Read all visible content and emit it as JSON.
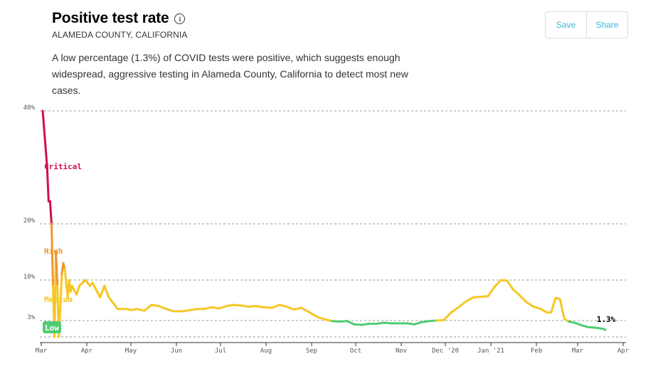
{
  "header": {
    "title": "Positive test rate",
    "info_icon": "info-icon",
    "subtitle": "ALAMEDA COUNTY, CALIFORNIA",
    "description": "A low percentage (1.3%) of COVID tests were positive, which suggests enough widespread, aggressive testing in Alameda County, California to detect most new cases."
  },
  "actions": {
    "save_label": "Save",
    "share_label": "Share"
  },
  "colors": {
    "critical": "#d0104a",
    "high": "#f0952f",
    "medium": "#f5c724",
    "low": "#4fcc74",
    "accent": "#3bb6d9"
  },
  "chart_data": {
    "type": "line",
    "title": "Positive test rate",
    "x_tick_labels": [
      "Mar",
      "Apr",
      "May",
      "Jun",
      "Jul",
      "Aug",
      "Sep",
      "Oct",
      "Nov",
      "Dec '20",
      "Jan '21",
      "Feb",
      "Mar",
      "Apr"
    ],
    "y_tick_labels": [
      "40%",
      "20%",
      "10%",
      "3%"
    ],
    "y_ticks": [
      40,
      20,
      10,
      3
    ],
    "xlim": [
      "2020-03-01",
      "2021-04-01"
    ],
    "grid": true,
    "zones": [
      {
        "name": "Critical",
        "from": 20,
        "to": 40
      },
      {
        "name": "High",
        "from": 10,
        "to": 20
      },
      {
        "name": "Medium",
        "from": 3,
        "to": 10
      },
      {
        "name": "Low",
        "from": 0,
        "to": 3
      }
    ],
    "last_value_label": "1.3%",
    "series": [
      {
        "x": [
          "2020-03-02",
          "2020-03-05",
          "2020-03-06",
          "2020-03-07",
          "2020-03-08",
          "2020-03-09",
          "2020-03-10",
          "2020-03-11",
          "2020-03-12",
          "2020-03-13",
          "2020-03-15",
          "2020-03-16",
          "2020-03-17",
          "2020-03-19",
          "2020-03-20",
          "2020-03-21",
          "2020-03-22",
          "2020-03-23",
          "2020-03-25",
          "2020-03-27",
          "2020-03-29",
          "2020-03-31",
          "2020-04-03",
          "2020-04-05",
          "2020-04-08",
          "2020-04-10",
          "2020-04-13",
          "2020-04-16",
          "2020-04-19",
          "2020-04-22",
          "2020-04-25",
          "2020-04-28",
          "2020-05-01",
          "2020-05-05",
          "2020-05-10",
          "2020-05-15",
          "2020-05-20",
          "2020-05-25",
          "2020-05-30",
          "2020-06-05",
          "2020-06-10",
          "2020-06-15",
          "2020-06-20",
          "2020-06-25",
          "2020-06-30",
          "2020-07-05",
          "2020-07-10",
          "2020-07-15",
          "2020-07-20",
          "2020-07-25",
          "2020-07-30",
          "2020-08-05",
          "2020-08-10",
          "2020-08-15",
          "2020-08-20",
          "2020-08-25",
          "2020-08-30",
          "2020-09-05",
          "2020-09-10",
          "2020-09-15",
          "2020-09-20",
          "2020-09-25",
          "2020-09-30",
          "2020-10-05",
          "2020-10-10",
          "2020-10-15",
          "2020-10-20",
          "2020-10-25",
          "2020-10-30",
          "2020-11-05",
          "2020-11-10",
          "2020-11-15",
          "2020-11-20",
          "2020-11-25",
          "2020-11-30",
          "2020-12-05",
          "2020-12-10",
          "2020-12-15",
          "2020-12-20",
          "2020-12-25",
          "2020-12-30",
          "2021-01-04",
          "2021-01-08",
          "2021-01-12",
          "2021-01-16",
          "2021-01-20",
          "2021-01-25",
          "2021-01-30",
          "2021-02-04",
          "2021-02-08",
          "2021-02-11",
          "2021-02-14",
          "2021-02-17",
          "2021-02-20",
          "2021-02-23",
          "2021-02-27",
          "2021-03-03",
          "2021-03-08",
          "2021-03-13",
          "2021-03-18",
          "2021-03-20"
        ],
        "y": [
          40,
          30,
          24,
          24,
          20,
          9,
          0,
          15,
          9,
          0,
          11,
          13,
          12,
          7,
          10,
          8,
          9,
          8.5,
          7.5,
          9,
          9.5,
          10,
          9,
          9.5,
          8,
          7,
          9,
          7,
          6,
          5,
          5,
          5,
          4.8,
          5,
          4.7,
          5.7,
          5.5,
          5,
          4.6,
          4.6,
          4.8,
          5,
          5,
          5.3,
          5.1,
          5.5,
          5.7,
          5.6,
          5.4,
          5.5,
          5.3,
          5.2,
          5.7,
          5.4,
          4.9,
          5.2,
          4.5,
          3.6,
          3.2,
          2.9,
          2.8,
          2.9,
          2.3,
          2.2,
          2.4,
          2.4,
          2.6,
          2.5,
          2.5,
          2.5,
          2.3,
          2.7,
          2.9,
          3.0,
          3.1,
          4.4,
          5.3,
          6.3,
          7.0,
          7.1,
          7.2,
          9.0,
          10,
          9.9,
          8.4,
          7.5,
          6.2,
          5.4,
          5.0,
          4.4,
          4.4,
          6.9,
          6.7,
          3.3,
          2.8,
          2.6,
          2.2,
          1.8,
          1.7,
          1.5,
          1.3
        ]
      }
    ]
  }
}
